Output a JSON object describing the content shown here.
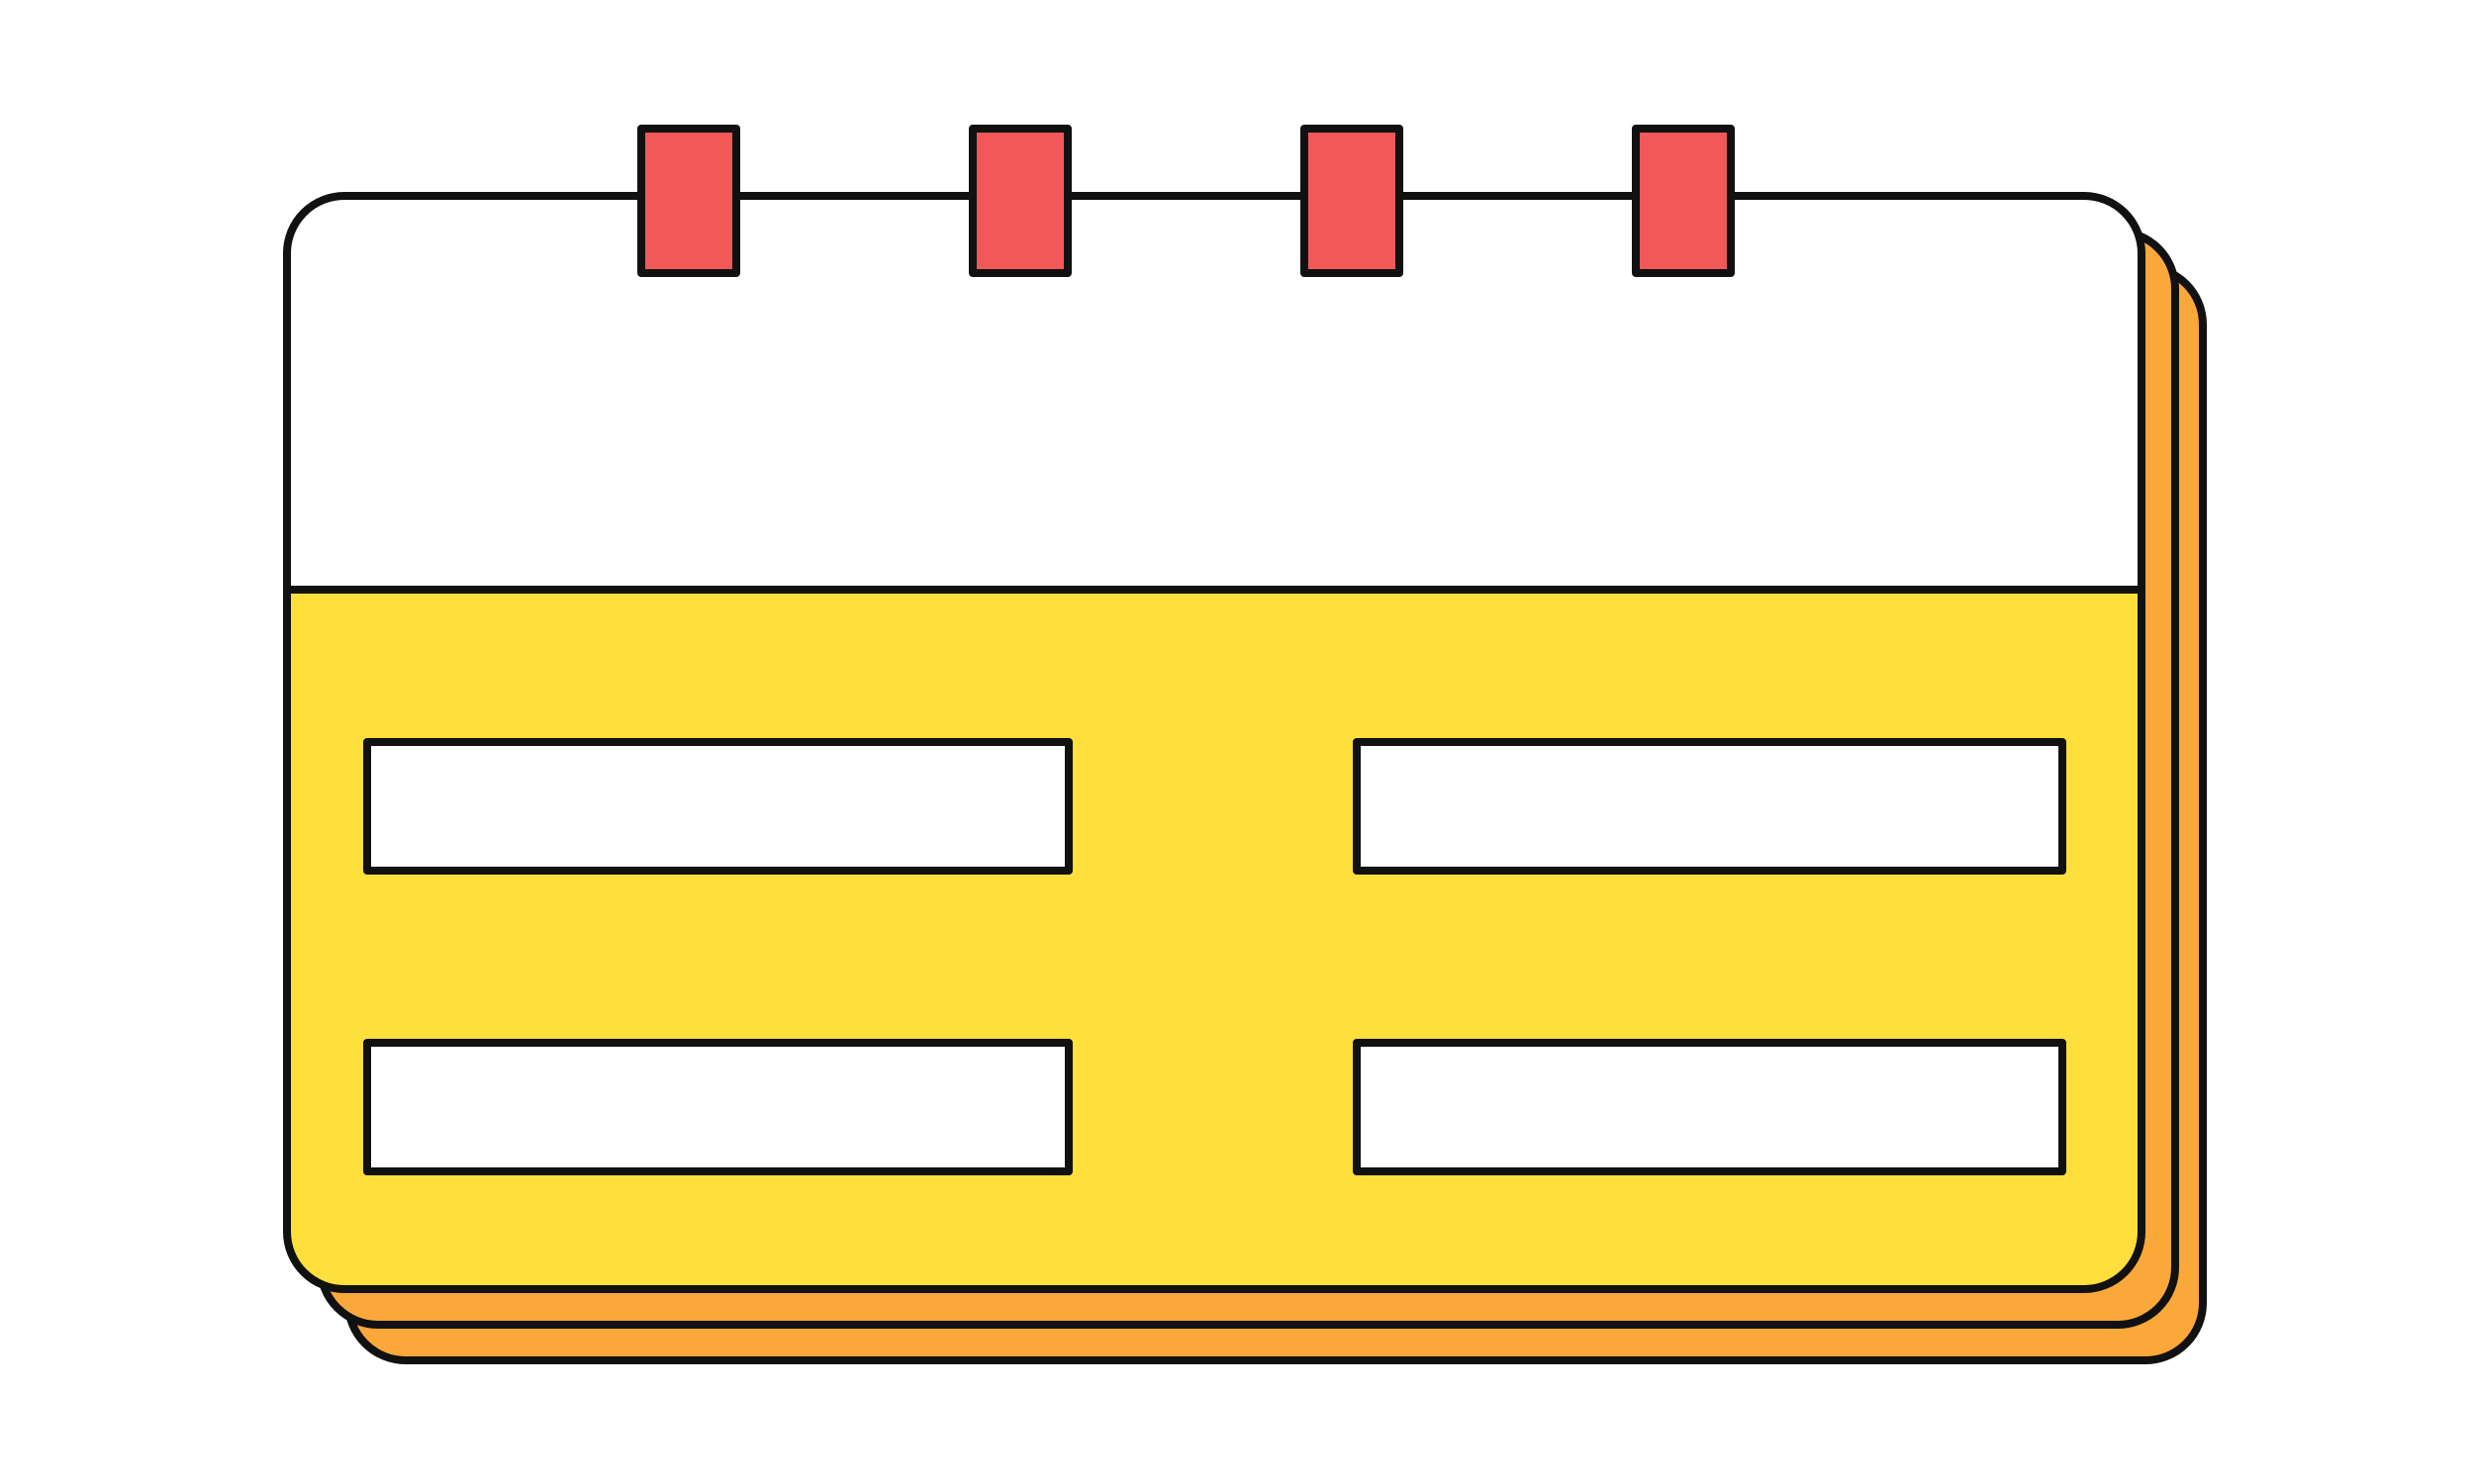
{
  "illustration": {
    "icon": "calendar-icon",
    "colors": {
      "background": "#ffffff",
      "outline": "#111111",
      "back_pages": "#FBA83B",
      "body": "#FEDF3C",
      "header": "#FFFFFF",
      "rings": "#F25858",
      "slots": "#FFFFFF"
    },
    "ring_count": 4,
    "slot_rows": 2,
    "slot_columns": 2
  }
}
